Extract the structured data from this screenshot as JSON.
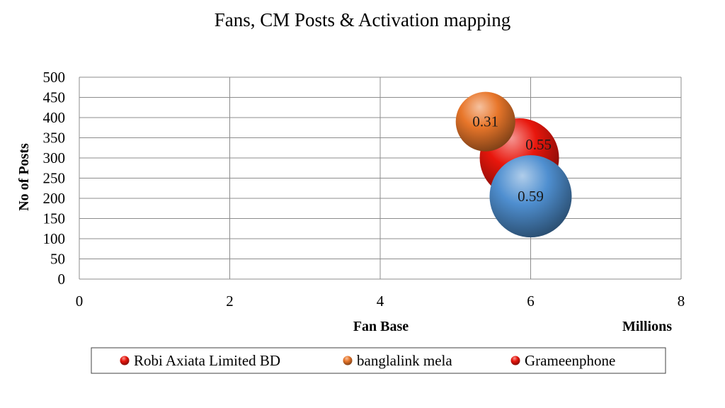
{
  "chart_data": {
    "type": "bubble",
    "title": "Fans, CM Posts & Activation mapping",
    "xlabel": "Fan Base",
    "x_unit_label": "Millions",
    "ylabel": "No of Posts",
    "xlim": [
      0,
      8
    ],
    "ylim": [
      0,
      500
    ],
    "x_ticks": [
      "0",
      "2",
      "4",
      "6",
      "8"
    ],
    "y_ticks": [
      "0",
      "50",
      "100",
      "150",
      "200",
      "250",
      "300",
      "350",
      "400",
      "450",
      "500"
    ],
    "grid": true,
    "legend_position": "bottom",
    "series": [
      {
        "name": "Robi Axiata Limited BD",
        "x": 5.85,
        "y": 300,
        "size": 0.55,
        "label": "0.55",
        "color": "#e8160c"
      },
      {
        "name": "banglalink mela",
        "x": 5.4,
        "y": 390,
        "size": 0.31,
        "label": "0.31",
        "color": "#e8762a"
      },
      {
        "name": "Grameenphone",
        "x": 6.0,
        "y": 205,
        "size": 0.59,
        "label": "0.59",
        "color": "#4f8fd0"
      }
    ],
    "legend_colors": [
      "#e8160c",
      "#e8762a",
      "#e8160c"
    ]
  }
}
